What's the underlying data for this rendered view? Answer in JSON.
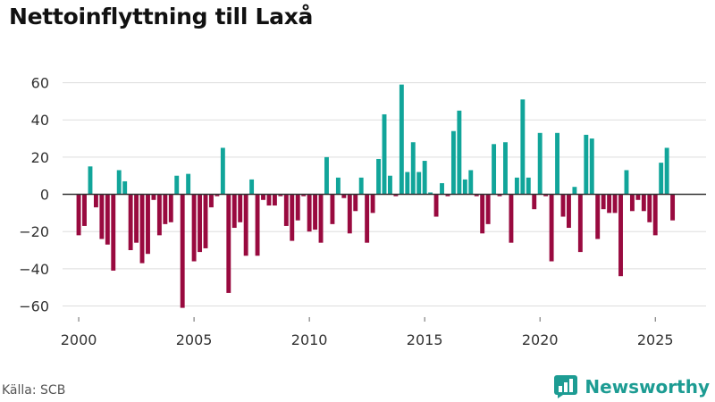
{
  "source": "Källa: SCB",
  "brand": {
    "name": "Newsworthy"
  },
  "colors": {
    "positive": "#11a59a",
    "negative": "#990a3f",
    "zero_line": "#333333",
    "grid": "#dddddd",
    "brand": "#1d9c93"
  },
  "chart_data": {
    "type": "bar",
    "title": "Nettoinflyttning till Laxå",
    "xlabel": "",
    "ylabel": "",
    "ylim": [
      -66,
      67
    ],
    "xlim": [
      1999.3,
      2027.2
    ],
    "yticks": [
      60,
      40,
      20,
      0,
      -20,
      -40,
      -60
    ],
    "ytick_labels": [
      "60",
      "40",
      "20",
      "0",
      "−20",
      "−40",
      "−60"
    ],
    "xticks": [
      2000,
      2005,
      2010,
      2015,
      2020,
      2025
    ],
    "xtick_labels": [
      "2000",
      "2005",
      "2010",
      "2015",
      "2020",
      "2025"
    ],
    "grid": true,
    "series_granularity": "quarterly",
    "start": 2000.0,
    "step": 0.25,
    "values": [
      -22,
      -17,
      15,
      -7,
      -24,
      -27,
      -41,
      13,
      7,
      -30,
      -26,
      -37,
      -32,
      -3,
      -22,
      -16,
      -15,
      10,
      -61,
      11,
      -36,
      -31,
      -29,
      -7,
      -1,
      25,
      -53,
      -18,
      -15,
      -33,
      8,
      -33,
      -3,
      -6,
      -6,
      -1,
      -17,
      -25,
      -14,
      -1,
      -20,
      -19,
      -26,
      20,
      -16,
      9,
      -2,
      -21,
      -9,
      9,
      -26,
      -10,
      19,
      43,
      10,
      -1,
      59,
      12,
      28,
      12,
      18,
      1,
      -12,
      6,
      -1,
      34,
      45,
      8,
      13,
      -1,
      -21,
      -16,
      27,
      -1,
      28,
      -26,
      9,
      51,
      9,
      -8,
      33,
      -1,
      -36,
      33,
      -12,
      -18,
      4,
      -31,
      32,
      30,
      -24,
      -8,
      -10,
      -10,
      -44,
      13,
      -9,
      -3,
      -9,
      -15,
      -22,
      17,
      25,
      -14
    ]
  }
}
